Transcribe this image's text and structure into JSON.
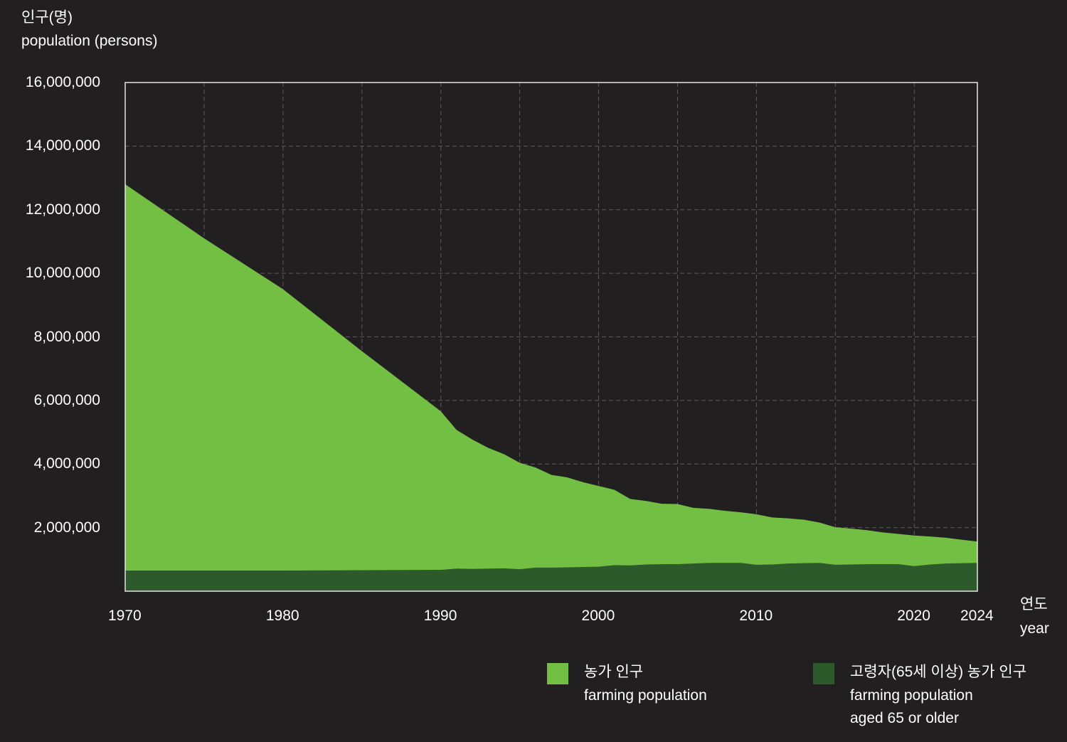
{
  "chart_data": {
    "type": "area",
    "ylabel_ko": "인구(명)",
    "ylabel_en": "population (persons)",
    "xlabel_ko": "연도",
    "xlabel_en": "year",
    "xlim": [
      1970,
      2024
    ],
    "ylim": [
      0,
      16000000
    ],
    "x_ticks": [
      1970,
      1980,
      1990,
      2000,
      2010,
      2020,
      2024
    ],
    "y_ticks": [
      2000000,
      4000000,
      6000000,
      8000000,
      10000000,
      12000000,
      14000000,
      16000000
    ],
    "y_tick_labels": [
      "2,000,000",
      "4,000,000",
      "6,000,000",
      "8,000,000",
      "10,000,000",
      "12,000,000",
      "14,000,000",
      "16,000,000"
    ],
    "grid": true,
    "legend_position": "bottom-right",
    "series": [
      {
        "name_ko": "농가 인구",
        "name_en": "farming population",
        "color": "#72bf44",
        "x": [
          1970,
          1975,
          1980,
          1985,
          1990,
          1991,
          1992,
          1993,
          1994,
          1995,
          1996,
          1997,
          1998,
          1999,
          2000,
          2001,
          2002,
          2003,
          2004,
          2005,
          2006,
          2007,
          2008,
          2009,
          2010,
          2011,
          2012,
          2013,
          2014,
          2015,
          2016,
          2017,
          2018,
          2019,
          2020,
          2021,
          2022,
          2023,
          2024
        ],
        "values": [
          12800000,
          11100000,
          9500000,
          7550000,
          5660000,
          5070000,
          4770000,
          4510000,
          4310000,
          4040000,
          3890000,
          3660000,
          3580000,
          3430000,
          3310000,
          3190000,
          2900000,
          2840000,
          2750000,
          2740000,
          2620000,
          2590000,
          2530000,
          2480000,
          2420000,
          2320000,
          2290000,
          2250000,
          2160000,
          2010000,
          1970000,
          1920000,
          1850000,
          1800000,
          1750000,
          1720000,
          1680000,
          1620000,
          1560000
        ]
      },
      {
        "name_ko": "고령자(65세 이상) 농가 인구",
        "name_en_line1": "farming population",
        "name_en_line2": "aged 65 or older",
        "color": "#2d5a2a",
        "x": [
          1970,
          1975,
          1980,
          1985,
          1990,
          1991,
          1992,
          1993,
          1994,
          1995,
          1996,
          1997,
          1998,
          1999,
          2000,
          2001,
          2002,
          2003,
          2004,
          2005,
          2006,
          2007,
          2008,
          2009,
          2010,
          2011,
          2012,
          2013,
          2014,
          2015,
          2016,
          2017,
          2018,
          2019,
          2020,
          2021,
          2022,
          2023,
          2024
        ],
        "values": [
          650000,
          650000,
          650000,
          660000,
          670000,
          710000,
          700000,
          710000,
          720000,
          690000,
          740000,
          740000,
          750000,
          760000,
          770000,
          820000,
          810000,
          840000,
          850000,
          850000,
          870000,
          890000,
          890000,
          890000,
          830000,
          840000,
          870000,
          880000,
          890000,
          830000,
          840000,
          850000,
          850000,
          850000,
          790000,
          840000,
          870000,
          880000,
          890000
        ]
      }
    ]
  }
}
